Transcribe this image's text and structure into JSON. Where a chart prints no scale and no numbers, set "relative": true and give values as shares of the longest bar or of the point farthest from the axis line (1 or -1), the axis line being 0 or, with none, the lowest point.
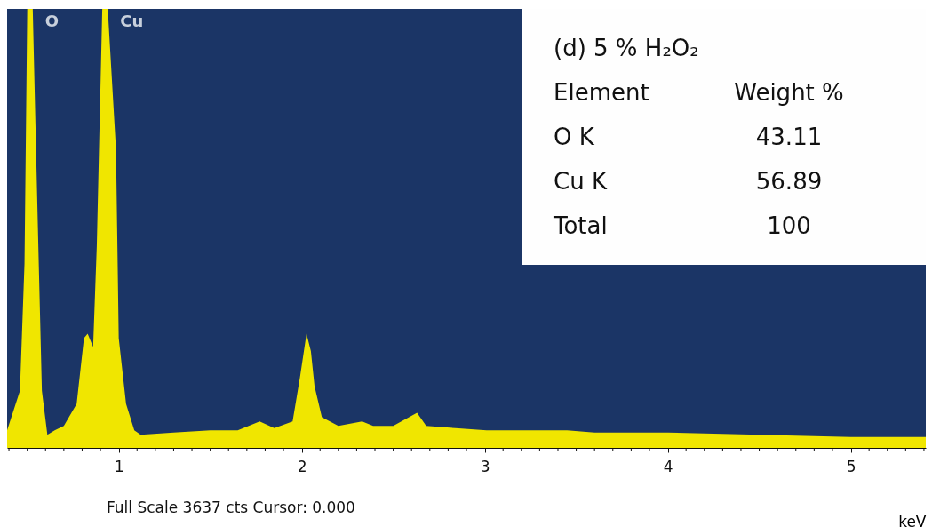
{
  "chart_data": {
    "type": "area",
    "relative": true,
    "xlabel": "keV",
    "x": [
      0.39,
      0.46,
      0.485,
      0.5,
      0.53,
      0.56,
      0.58,
      0.61,
      0.65,
      0.7,
      0.77,
      0.81,
      0.83,
      0.86,
      0.88,
      0.91,
      0.94,
      0.985,
      1.0,
      1.04,
      1.085,
      1.12,
      1.3,
      1.5,
      1.65,
      1.77,
      1.85,
      1.95,
      1.99,
      2.026,
      2.05,
      2.07,
      2.11,
      2.2,
      2.33,
      2.39,
      2.5,
      2.63,
      2.68,
      2.84,
      3.01,
      3.2,
      3.45,
      3.6,
      4.0,
      4.5,
      5.0,
      5.41
    ],
    "series": [
      {
        "color": "#f0e600",
        "values": [
          0.04,
          0.13,
          0.42,
          1,
          1,
          0.47,
          0.13,
          0.03,
          0.04,
          0.05,
          0.1,
          0.25,
          0.26,
          0.23,
          0.46,
          1,
          1,
          0.68,
          0.25,
          0.1,
          0.04,
          0.03,
          0.035,
          0.04,
          0.04,
          0.06,
          0.045,
          0.06,
          0.16,
          0.26,
          0.22,
          0.14,
          0.07,
          0.05,
          0.06,
          0.05,
          0.05,
          0.08,
          0.05,
          0.045,
          0.04,
          0.04,
          0.04,
          0.035,
          0.035,
          0.03,
          0.025,
          0.025
        ]
      }
    ],
    "xlim": [
      0.39,
      5.41
    ],
    "xticks": [
      1,
      2,
      3,
      4,
      5,
      {
        "value": 0.4,
        "label": null
      },
      {
        "value": 0.5,
        "label": null
      },
      {
        "value": 0.6,
        "label": null
      },
      {
        "value": 0.7,
        "label": null
      },
      {
        "value": 0.8,
        "label": null
      },
      {
        "value": 0.9,
        "label": null
      },
      {
        "value": 1.1,
        "label": null
      },
      {
        "value": 1.2,
        "label": null
      },
      {
        "value": 1.3,
        "label": null
      },
      {
        "value": 1.4,
        "label": null
      },
      {
        "value": 1.5,
        "label": null
      },
      {
        "value": 1.6,
        "label": null
      },
      {
        "value": 1.7,
        "label": null
      },
      {
        "value": 1.8,
        "label": null
      },
      {
        "value": 1.9,
        "label": null
      },
      {
        "value": 2.1,
        "label": null
      },
      {
        "value": 2.2,
        "label": null
      },
      {
        "value": 2.3,
        "label": null
      },
      {
        "value": 2.4,
        "label": null
      },
      {
        "value": 2.5,
        "label": null
      },
      {
        "value": 2.6,
        "label": null
      },
      {
        "value": 2.7,
        "label": null
      },
      {
        "value": 2.8,
        "label": null
      },
      {
        "value": 2.9,
        "label": null
      },
      {
        "value": 3.1,
        "label": null
      },
      {
        "value": 3.2,
        "label": null
      },
      {
        "value": 3.3,
        "label": null
      },
      {
        "value": 3.4,
        "label": null
      },
      {
        "value": 3.5,
        "label": null
      },
      {
        "value": 3.6,
        "label": null
      },
      {
        "value": 3.7,
        "label": null
      },
      {
        "value": 3.8,
        "label": null
      },
      {
        "value": 3.9,
        "label": null
      },
      {
        "value": 4.1,
        "label": null
      },
      {
        "value": 4.2,
        "label": null
      },
      {
        "value": 4.3,
        "label": null
      },
      {
        "value": 4.4,
        "label": null
      },
      {
        "value": 4.5,
        "label": null
      },
      {
        "value": 4.6,
        "label": null
      },
      {
        "value": 4.7,
        "label": null
      },
      {
        "value": 4.8,
        "label": null
      },
      {
        "value": 4.9,
        "label": null
      },
      {
        "value": 5.1,
        "label": null
      },
      {
        "value": 5.2,
        "label": null
      },
      {
        "value": 5.3,
        "label": null
      },
      {
        "value": 5.4,
        "label": null
      }
    ],
    "grid": false,
    "annotations": [
      "(d) 5 % H₂O₂",
      "Element",
      "Weight %",
      "O K",
      "43.11",
      "Cu K",
      "56.89",
      "Total",
      "100",
      "Full Scale 3637 cts Cursor: 0.000",
      {
        "text": "O",
        "x": 0.53,
        "y": 1
      },
      {
        "text": "Cu",
        "x": 0.94,
        "y": 1
      }
    ]
  }
}
